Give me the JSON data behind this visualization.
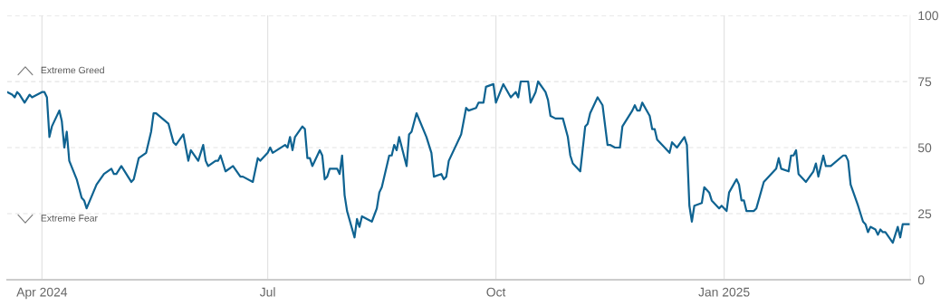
{
  "chart_data": {
    "type": "line",
    "annotations": [
      "Extreme Greed",
      "Extreme Fear"
    ],
    "xlim": [
      "2024-03-18",
      "2025-03-17"
    ],
    "xticks": [
      {
        "value": "2024-04-01",
        "label": "Apr 2024"
      },
      {
        "value": "2024-07-01",
        "label": "Jul"
      },
      {
        "value": "2024-10-01",
        "label": "Oct"
      },
      {
        "value": "2025-01-01",
        "label": "Jan 2025"
      }
    ],
    "ylim": [
      0,
      100
    ],
    "yticks": [
      0,
      25,
      50,
      75,
      100
    ],
    "grid": true,
    "marker": "none",
    "line_style": "solid",
    "series": [
      {
        "color": "#0f6391",
        "x": [
          "2024-03-18",
          "2024-03-20",
          "2024-03-21",
          "2024-03-22",
          "2024-03-23",
          "2024-03-25",
          "2024-03-27",
          "2024-03-28",
          "2024-04-01",
          "2024-04-02",
          "2024-04-03",
          "2024-04-04",
          "2024-04-05",
          "2024-04-08",
          "2024-04-09",
          "2024-04-10",
          "2024-04-11",
          "2024-04-12",
          "2024-04-15",
          "2024-04-17",
          "2024-04-18",
          "2024-04-19",
          "2024-04-23",
          "2024-04-26",
          "2024-04-29",
          "2024-04-30",
          "2024-05-01",
          "2024-05-03",
          "2024-05-07",
          "2024-05-08",
          "2024-05-10",
          "2024-05-13",
          "2024-05-15",
          "2024-05-16",
          "2024-05-17",
          "2024-05-22",
          "2024-05-24",
          "2024-05-25",
          "2024-05-28",
          "2024-05-30",
          "2024-05-31",
          "2024-06-03",
          "2024-06-05",
          "2024-06-06",
          "2024-06-07",
          "2024-06-10",
          "2024-06-11",
          "2024-06-12",
          "2024-06-14",
          "2024-06-17",
          "2024-06-20",
          "2024-06-21",
          "2024-06-25",
          "2024-06-27",
          "2024-06-28",
          "2024-07-01",
          "2024-07-02",
          "2024-07-03",
          "2024-07-08",
          "2024-07-09",
          "2024-07-10",
          "2024-07-11",
          "2024-07-12",
          "2024-07-15",
          "2024-07-16",
          "2024-07-17",
          "2024-07-18",
          "2024-07-19",
          "2024-07-22",
          "2024-07-23",
          "2024-07-24",
          "2024-07-25",
          "2024-07-26",
          "2024-07-29",
          "2024-07-30",
          "2024-07-31",
          "2024-08-01",
          "2024-08-02",
          "2024-08-05",
          "2024-08-06",
          "2024-08-07",
          "2024-08-08",
          "2024-08-12",
          "2024-08-14",
          "2024-08-15",
          "2024-08-16",
          "2024-08-19",
          "2024-08-20",
          "2024-08-21",
          "2024-08-22",
          "2024-08-23",
          "2024-08-26",
          "2024-08-27",
          "2024-08-28",
          "2024-08-30",
          "2024-09-03",
          "2024-09-05",
          "2024-09-06",
          "2024-09-09",
          "2024-09-10",
          "2024-09-11",
          "2024-09-12",
          "2024-09-17",
          "2024-09-19",
          "2024-09-20",
          "2024-09-23",
          "2024-09-24",
          "2024-09-26",
          "2024-09-27",
          "2024-09-30",
          "2024-10-01",
          "2024-10-04",
          "2024-10-07",
          "2024-10-09",
          "2024-10-10",
          "2024-10-11",
          "2024-10-14",
          "2024-10-15",
          "2024-10-17",
          "2024-10-18",
          "2024-10-21",
          "2024-10-22",
          "2024-10-23",
          "2024-10-25",
          "2024-10-28",
          "2024-10-30",
          "2024-10-31",
          "2024-11-01",
          "2024-11-04",
          "2024-11-06",
          "2024-11-07",
          "2024-11-08",
          "2024-11-11",
          "2024-11-13",
          "2024-11-15",
          "2024-11-16",
          "2024-11-18",
          "2024-11-20",
          "2024-11-21",
          "2024-11-23",
          "2024-11-25",
          "2024-11-26",
          "2024-11-27",
          "2024-11-28",
          "2024-11-29",
          "2024-12-02",
          "2024-12-03",
          "2024-12-04",
          "2024-12-05",
          "2024-12-07",
          "2024-12-10",
          "2024-12-11",
          "2024-12-13",
          "2024-12-16",
          "2024-12-17",
          "2024-12-18",
          "2024-12-19",
          "2024-12-20",
          "2024-12-23",
          "2024-12-24",
          "2024-12-26",
          "2024-12-27",
          "2024-12-30",
          "2024-12-31",
          "2025-01-02",
          "2025-01-03",
          "2025-01-06",
          "2025-01-07",
          "2025-01-08",
          "2025-01-09",
          "2025-01-10",
          "2025-01-13",
          "2025-01-14",
          "2025-01-17",
          "2025-01-22",
          "2025-01-23",
          "2025-01-24",
          "2025-01-27",
          "2025-01-28",
          "2025-01-29",
          "2025-01-30",
          "2025-01-31",
          "2025-02-03",
          "2025-02-06",
          "2025-02-07",
          "2025-02-08",
          "2025-02-10",
          "2025-02-11",
          "2025-02-13",
          "2025-02-18",
          "2025-02-19",
          "2025-02-20",
          "2025-02-21",
          "2025-02-24",
          "2025-02-26",
          "2025-02-27",
          "2025-02-28",
          "2025-03-01",
          "2025-03-03",
          "2025-03-04",
          "2025-03-05",
          "2025-03-06",
          "2025-03-07",
          "2025-03-10",
          "2025-03-12",
          "2025-03-13",
          "2025-03-14",
          "2025-03-17"
        ],
        "values": [
          71,
          70,
          69,
          71,
          70,
          67,
          70,
          69,
          71,
          71,
          69,
          54,
          58,
          64,
          60,
          50,
          56,
          45,
          38,
          31,
          30,
          27,
          36,
          40,
          42,
          40,
          40,
          43,
          37,
          38,
          46,
          48,
          56,
          63,
          63,
          59,
          52,
          51,
          55,
          45,
          49,
          45,
          51,
          45,
          43,
          45,
          45,
          47,
          41,
          43,
          39,
          39,
          37,
          46,
          45,
          48,
          50,
          48,
          51,
          50,
          54,
          49,
          54,
          58,
          57,
          46,
          46,
          43,
          49,
          47,
          38,
          39,
          42,
          42,
          40,
          47,
          32,
          26,
          16,
          23,
          20,
          24,
          22,
          27,
          33,
          35,
          47,
          47,
          51,
          49,
          54,
          43,
          55,
          56,
          63,
          54,
          48,
          39,
          40,
          38,
          39,
          45,
          55,
          65,
          64,
          65,
          67,
          67,
          73,
          74,
          67,
          74,
          69,
          71,
          69,
          75,
          75,
          67,
          71,
          75,
          71,
          68,
          62,
          61,
          61,
          54,
          47,
          44,
          41,
          58,
          59,
          63,
          69,
          66,
          51,
          51,
          50,
          50,
          58,
          61,
          64,
          66,
          64,
          64,
          67,
          62,
          57,
          57,
          53,
          51,
          48,
          52,
          50,
          54,
          51,
          28,
          22,
          28,
          29,
          35,
          33,
          30,
          27,
          28,
          26,
          33,
          38,
          36,
          30,
          30,
          26,
          26,
          27,
          37,
          42,
          46,
          42,
          41,
          47,
          47,
          49,
          40,
          37,
          41,
          44,
          39,
          47,
          43,
          43,
          47,
          47,
          45,
          36,
          28,
          22,
          21,
          18,
          20,
          19,
          17,
          19,
          18,
          18,
          14,
          20,
          16,
          21,
          21
        ]
      }
    ]
  }
}
